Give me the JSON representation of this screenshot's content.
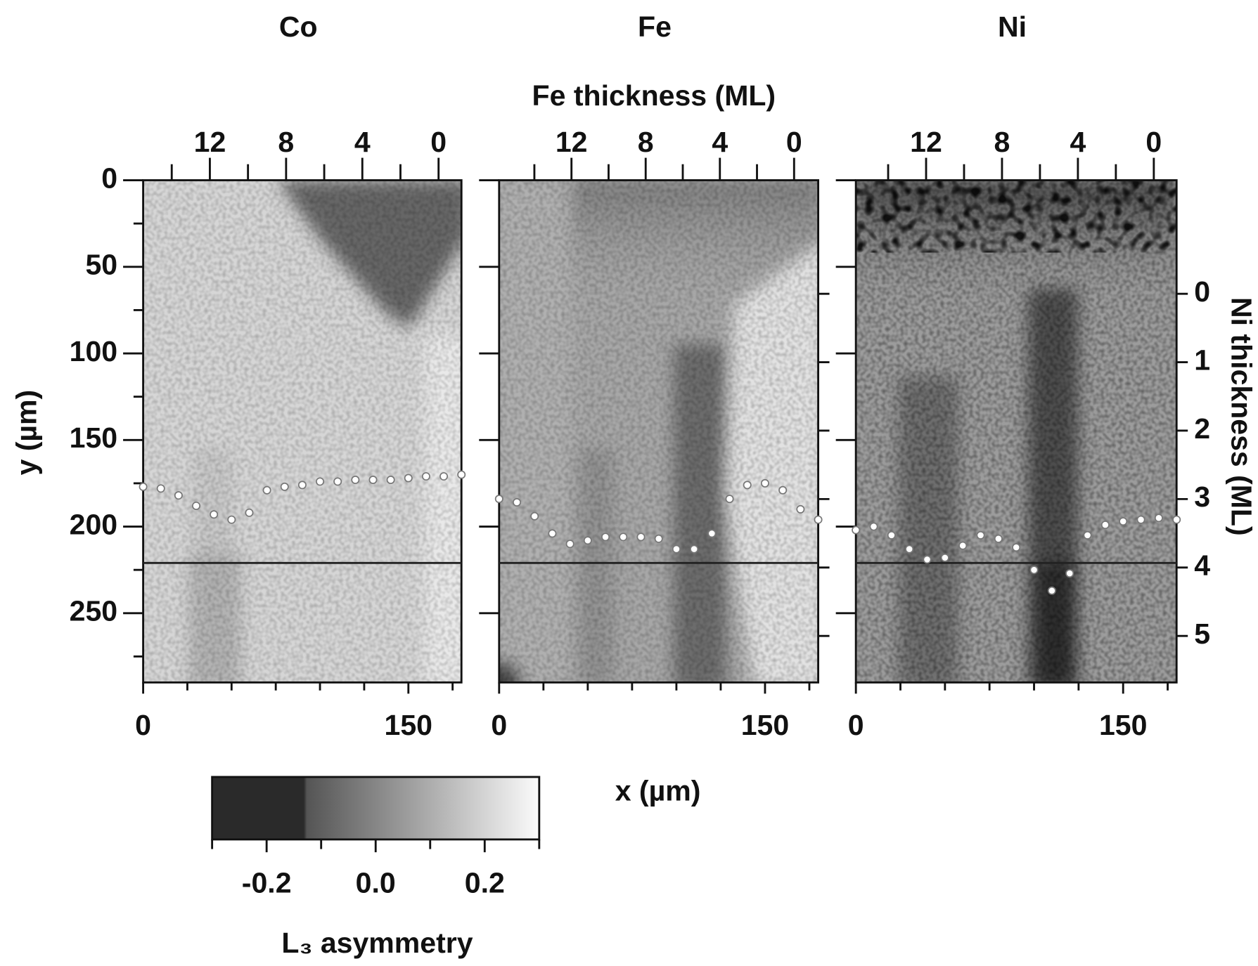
{
  "chart_data": {
    "type": "heatmap",
    "panels": [
      {
        "title": "Co",
        "profile": [
          177,
          178,
          182,
          188,
          193,
          196,
          192,
          179,
          177,
          176,
          174,
          174,
          173,
          173,
          173,
          172,
          171,
          171,
          170
        ]
      },
      {
        "title": "Fe",
        "profile": [
          184,
          186,
          194,
          204,
          210,
          208,
          206,
          206,
          206,
          207,
          213,
          213,
          204,
          184,
          176,
          175,
          179,
          190,
          196
        ]
      },
      {
        "title": "Ni",
        "profile": [
          202,
          200,
          205,
          213,
          219,
          218,
          211,
          205,
          207,
          212,
          225,
          237,
          227,
          205,
          199,
          197,
          196,
          195,
          196
        ]
      }
    ],
    "profile_x": [
      0,
      10,
      20,
      30,
      40,
      50,
      60,
      70,
      80,
      90,
      100,
      110,
      120,
      130,
      140,
      150,
      160,
      170,
      180
    ],
    "cut_y": 221,
    "xlabel": "x  (µm)",
    "xlim": [
      0,
      180
    ],
    "xticks": [
      0,
      150
    ],
    "xminor_ticks": [
      25,
      50,
      75,
      100,
      125,
      175
    ],
    "ylabel": "y  (µm)",
    "ylim": [
      0,
      290
    ],
    "yticks": [
      0,
      50,
      100,
      150,
      200,
      250
    ],
    "yminor_ticks": [
      25,
      75,
      125,
      175,
      225,
      275
    ],
    "top_axis": {
      "label": "Fe thickness  (ML)",
      "lims": [
        [
          15.5,
          -1.2
        ],
        [
          15.9,
          -1.3
        ],
        [
          15.7,
          -1.2
        ]
      ],
      "ticks": [
        12,
        8,
        4,
        0
      ],
      "minor_ticks": [
        14,
        10,
        6,
        2
      ]
    },
    "y2label": "Ni thickness  (ML)",
    "y2lim": [
      -1.66,
      5.68
    ],
    "y2ticks": [
      0,
      1,
      2,
      3,
      4,
      5
    ],
    "colorbar": {
      "label": "L₃ asymmetry",
      "lim": [
        -0.3,
        0.3
      ],
      "ticks": [
        -0.2,
        {
          "value": 0,
          "label": "0.0"
        },
        0.2
      ],
      "minor_ticks": [
        -0.3,
        -0.1,
        0.1,
        0.3
      ]
    }
  }
}
